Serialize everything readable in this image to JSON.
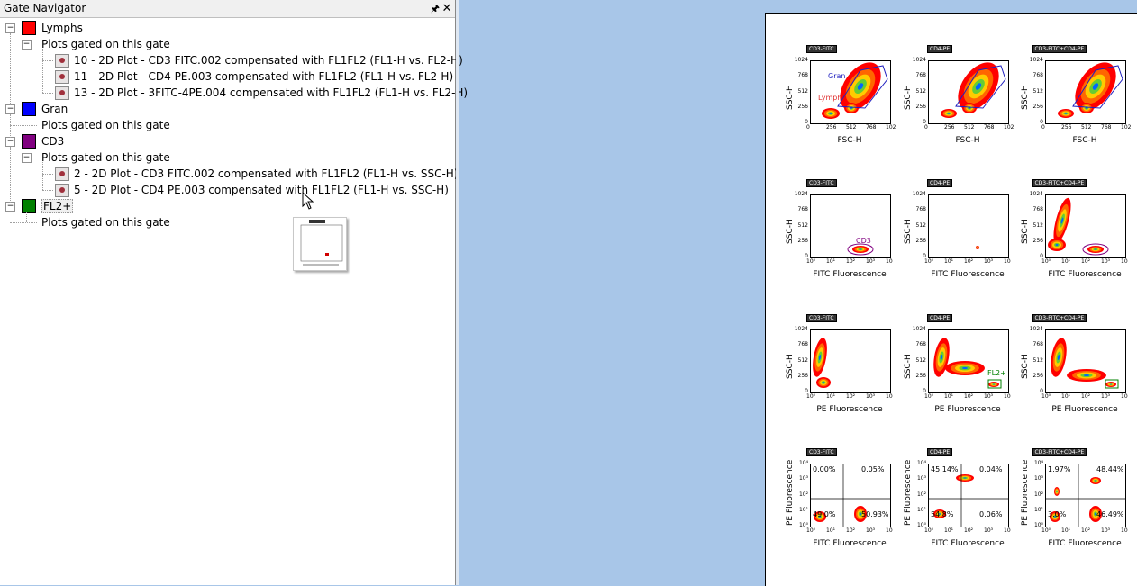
{
  "navigator": {
    "title": "Gate Navigator",
    "pin_icon": "pin-icon",
    "close_icon": "close-icon",
    "gates": [
      {
        "name": "Lymphs",
        "color": "#ff0000",
        "subheader": "Plots gated on this gate",
        "plots": [
          "10 - 2D Plot - CD3 FITC.002 compensated with FL1FL2 (FL1-H vs. FL2-H)",
          "11 - 2D Plot - CD4 PE.003 compensated with FL1FL2 (FL1-H vs. FL2-H)",
          "13 - 2D Plot - 3FITC-4PE.004 compensated with FL1FL2 (FL1-H vs. FL2-H)"
        ]
      },
      {
        "name": "Gran",
        "color": "#0000ff",
        "subheader": "Plots gated on this gate",
        "plots": []
      },
      {
        "name": "CD3",
        "color": "#800080",
        "subheader": "Plots gated on this gate",
        "plots": [
          "2 - 2D Plot - CD3 FITC.002 compensated with FL1FL2 (FL1-H vs. SSC-H)",
          "5 - 2D Plot - CD4 PE.003 compensated with FL1FL2 (FL1-H vs. SSC-H)"
        ]
      },
      {
        "name": "FL2+",
        "color": "#008000",
        "subheader": "Plots gated on this gate",
        "plots": []
      }
    ]
  },
  "layout_page": {
    "columns": [
      "CD3-FITC",
      "CD4-PE",
      "CD3-FITC+CD4-PE"
    ],
    "rows": [
      {
        "ylabel": "SSC-H",
        "xlabel": "FSC-H",
        "yticks": [
          "1024",
          "768",
          "512",
          "256",
          "0"
        ],
        "xticks": [
          "0",
          "256",
          "512",
          "768",
          "102"
        ],
        "gates": [
          [
            "Gran",
            "Lymph"
          ],
          [],
          []
        ]
      },
      {
        "ylabel": "SSC-H",
        "xlabel": "FITC Fluorescence",
        "yticks": [
          "1024",
          "768",
          "512",
          "256",
          "0"
        ],
        "xticks": [
          "10⁰",
          "10¹",
          "10²",
          "10³",
          "10"
        ],
        "gates": [
          [
            "CD3"
          ],
          [],
          []
        ]
      },
      {
        "ylabel": "SSC-H",
        "xlabel": "PE Fluorescence",
        "yticks": [
          "1024",
          "768",
          "512",
          "256",
          "0"
        ],
        "xticks": [
          "10⁰",
          "10¹",
          "10²",
          "10³",
          "10"
        ],
        "gates": [
          [],
          [
            "FL2+"
          ],
          []
        ]
      },
      {
        "ylabel": "PE Fluorescence",
        "xlabel": "FITC Fluorescence",
        "yticks": [
          "10⁴",
          "10³",
          "10²",
          "10¹",
          "10⁰"
        ],
        "xticks": [
          "10⁰",
          "10¹",
          "10²",
          "10³",
          "10"
        ],
        "quadrants": [
          [
            "0.00%",
            "0.05%",
            "49.0%",
            "50.93%"
          ],
          [
            "45.14%",
            "0.04%",
            "54.8%",
            "0.06%"
          ],
          [
            "1.97%",
            "48.44%",
            "3.0%",
            "46.49%"
          ]
        ]
      }
    ]
  }
}
